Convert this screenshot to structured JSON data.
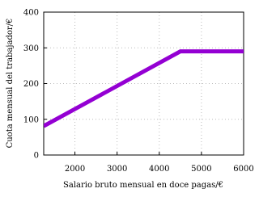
{
  "chart_data": {
    "type": "line",
    "x_label": "Salario bruto mensual en doce pagas/€",
    "y_label": "Cuota mensual del trabajador/€",
    "x": [
      1260,
      4500,
      6000
    ],
    "series": [
      {
        "color": "#9400d3",
        "values": [
          81,
          290,
          290
        ]
      }
    ],
    "xlim": [
      1260,
      6000
    ],
    "xticks": [
      2000,
      3000,
      4000,
      5000,
      6000
    ],
    "ylim": [
      0,
      400
    ],
    "yticks": [
      0,
      100,
      200,
      300,
      400
    ],
    "grid": true
  }
}
